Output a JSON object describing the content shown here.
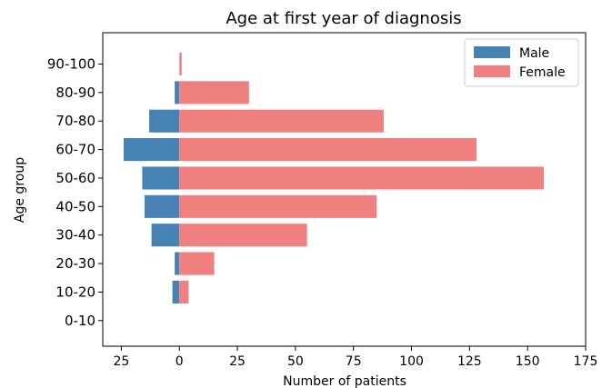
{
  "chart_data": {
    "type": "bar",
    "orientation": "horizontal",
    "title": "Age at first year of diagnosis",
    "xlabel": "Number of patients",
    "ylabel": "Age group",
    "categories": [
      "0-10",
      "10-20",
      "20-30",
      "30-40",
      "40-50",
      "50-60",
      "60-70",
      "70-80",
      "80-90",
      "90-100"
    ],
    "series": [
      {
        "name": "Male",
        "color": "#4682b4",
        "values": [
          0,
          -3,
          -2,
          -12,
          -15,
          -16,
          -24,
          -13,
          -2,
          0
        ]
      },
      {
        "name": "Female",
        "color": "#f08080",
        "values": [
          0,
          4,
          15,
          55,
          85,
          157,
          128,
          88,
          30,
          1
        ]
      }
    ],
    "xlim": [
      -33,
      175
    ],
    "xticks": [
      -25,
      0,
      25,
      50,
      75,
      100,
      125,
      150,
      175
    ],
    "xtick_labels": [
      "25",
      "0",
      "25",
      "50",
      "75",
      "100",
      "125",
      "150",
      "175"
    ],
    "legend_position": "top-right",
    "grid": false
  }
}
